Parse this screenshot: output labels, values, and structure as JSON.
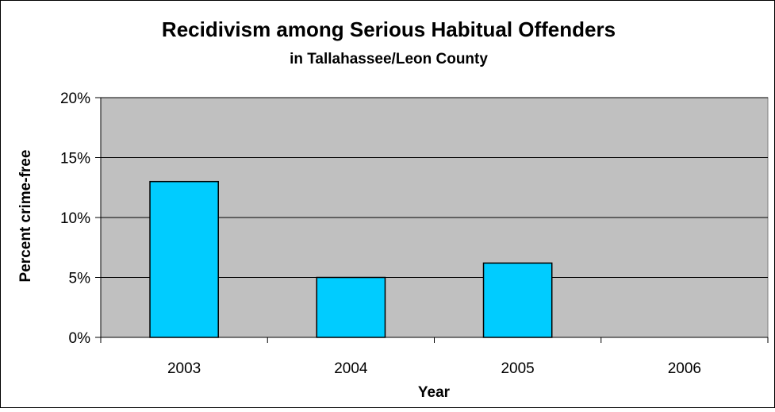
{
  "chart_data": {
    "type": "bar",
    "title": "Recidivism among Serious Habitual Offenders",
    "subtitle": "in Tallahassee/Leon County",
    "xlabel": "Year",
    "ylabel": "Percent crime-free",
    "categories": [
      "2003",
      "2004",
      "2005",
      "2006"
    ],
    "values": [
      13,
      5,
      6.2,
      0
    ],
    "ylim": [
      0,
      20
    ],
    "yticks": [
      0,
      5,
      10,
      15,
      20
    ],
    "ytick_labels": [
      "0%",
      "5%",
      "10%",
      "15%",
      "20%"
    ],
    "grid": true,
    "legend": "none",
    "colors": {
      "plot_background": "#c0c0c0",
      "bar_fill": "#00ccff",
      "bar_stroke": "#000000",
      "gridline": "#000000"
    }
  }
}
